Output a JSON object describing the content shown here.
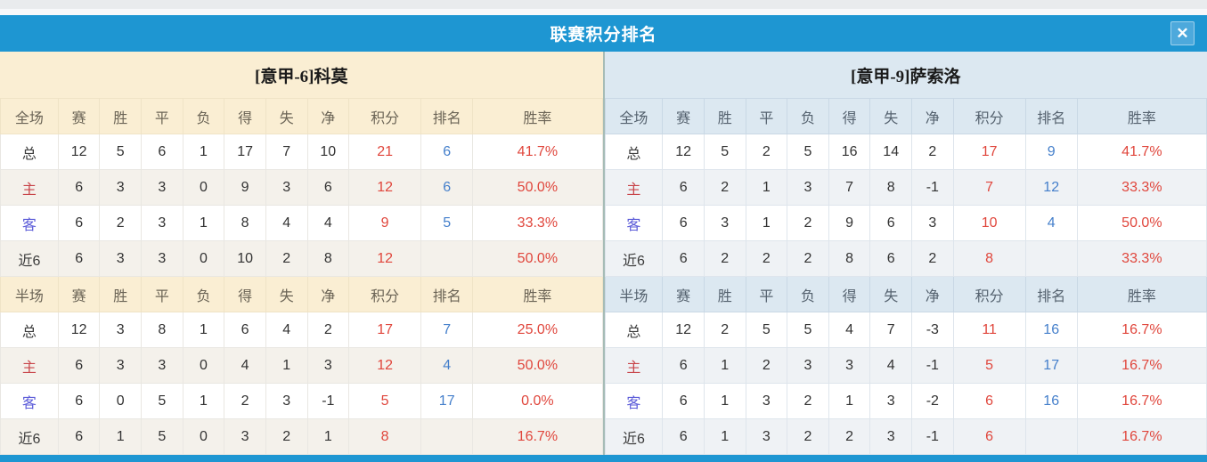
{
  "title_bar": {
    "title": "联赛积分排名",
    "close_label": "✕"
  },
  "colors": {
    "accent_blue": "#1E96D2",
    "left_theme_bg": "#FAEED3",
    "right_theme_bg": "#DCE8F1",
    "points_red": "#E0463C",
    "rank_blue": "#447FCB",
    "home_label_red": "#C8454A",
    "away_label_blue": "#5A5AD8"
  },
  "panels": [
    {
      "team": "[意甲-6]科莫",
      "theme": "cream",
      "sections": [
        {
          "header": [
            "全场",
            "赛",
            "胜",
            "平",
            "负",
            "得",
            "失",
            "净",
            "积分",
            "排名",
            "胜率"
          ],
          "rows": [
            {
              "label": "总",
              "label_type": "total",
              "stats": [
                "12",
                "5",
                "6",
                "1",
                "17",
                "7",
                "10"
              ],
              "points": "21",
              "rank": "6",
              "rate": "41.7%"
            },
            {
              "label": "主",
              "label_type": "home",
              "stats": [
                "6",
                "3",
                "3",
                "0",
                "9",
                "3",
                "6"
              ],
              "points": "12",
              "rank": "6",
              "rate": "50.0%"
            },
            {
              "label": "客",
              "label_type": "away",
              "stats": [
                "6",
                "2",
                "3",
                "1",
                "8",
                "4",
                "4"
              ],
              "points": "9",
              "rank": "5",
              "rate": "33.3%"
            },
            {
              "label": "近6",
              "label_type": "recent",
              "stats": [
                "6",
                "3",
                "3",
                "0",
                "10",
                "2",
                "8"
              ],
              "points": "12",
              "rank": "",
              "rate": "50.0%"
            }
          ]
        },
        {
          "header": [
            "半场",
            "赛",
            "胜",
            "平",
            "负",
            "得",
            "失",
            "净",
            "积分",
            "排名",
            "胜率"
          ],
          "rows": [
            {
              "label": "总",
              "label_type": "total",
              "stats": [
                "12",
                "3",
                "8",
                "1",
                "6",
                "4",
                "2"
              ],
              "points": "17",
              "rank": "7",
              "rate": "25.0%"
            },
            {
              "label": "主",
              "label_type": "home",
              "stats": [
                "6",
                "3",
                "3",
                "0",
                "4",
                "1",
                "3"
              ],
              "points": "12",
              "rank": "4",
              "rate": "50.0%"
            },
            {
              "label": "客",
              "label_type": "away",
              "stats": [
                "6",
                "0",
                "5",
                "1",
                "2",
                "3",
                "-1"
              ],
              "points": "5",
              "rank": "17",
              "rate": "0.0%"
            },
            {
              "label": "近6",
              "label_type": "recent",
              "stats": [
                "6",
                "1",
                "5",
                "0",
                "3",
                "2",
                "1"
              ],
              "points": "8",
              "rank": "",
              "rate": "16.7%"
            }
          ]
        }
      ]
    },
    {
      "team": "[意甲-9]萨索洛",
      "theme": "blue",
      "sections": [
        {
          "header": [
            "全场",
            "赛",
            "胜",
            "平",
            "负",
            "得",
            "失",
            "净",
            "积分",
            "排名",
            "胜率"
          ],
          "rows": [
            {
              "label": "总",
              "label_type": "total",
              "stats": [
                "12",
                "5",
                "2",
                "5",
                "16",
                "14",
                "2"
              ],
              "points": "17",
              "rank": "9",
              "rate": "41.7%"
            },
            {
              "label": "主",
              "label_type": "home",
              "stats": [
                "6",
                "2",
                "1",
                "3",
                "7",
                "8",
                "-1"
              ],
              "points": "7",
              "rank": "12",
              "rate": "33.3%"
            },
            {
              "label": "客",
              "label_type": "away",
              "stats": [
                "6",
                "3",
                "1",
                "2",
                "9",
                "6",
                "3"
              ],
              "points": "10",
              "rank": "4",
              "rate": "50.0%"
            },
            {
              "label": "近6",
              "label_type": "recent",
              "stats": [
                "6",
                "2",
                "2",
                "2",
                "8",
                "6",
                "2"
              ],
              "points": "8",
              "rank": "",
              "rate": "33.3%"
            }
          ]
        },
        {
          "header": [
            "半场",
            "赛",
            "胜",
            "平",
            "负",
            "得",
            "失",
            "净",
            "积分",
            "排名",
            "胜率"
          ],
          "rows": [
            {
              "label": "总",
              "label_type": "total",
              "stats": [
                "12",
                "2",
                "5",
                "5",
                "4",
                "7",
                "-3"
              ],
              "points": "11",
              "rank": "16",
              "rate": "16.7%"
            },
            {
              "label": "主",
              "label_type": "home",
              "stats": [
                "6",
                "1",
                "2",
                "3",
                "3",
                "4",
                "-1"
              ],
              "points": "5",
              "rank": "17",
              "rate": "16.7%"
            },
            {
              "label": "客",
              "label_type": "away",
              "stats": [
                "6",
                "1",
                "3",
                "2",
                "1",
                "3",
                "-2"
              ],
              "points": "6",
              "rank": "16",
              "rate": "16.7%"
            },
            {
              "label": "近6",
              "label_type": "recent",
              "stats": [
                "6",
                "1",
                "3",
                "2",
                "2",
                "3",
                "-1"
              ],
              "points": "6",
              "rank": "",
              "rate": "16.7%"
            }
          ]
        }
      ]
    }
  ]
}
